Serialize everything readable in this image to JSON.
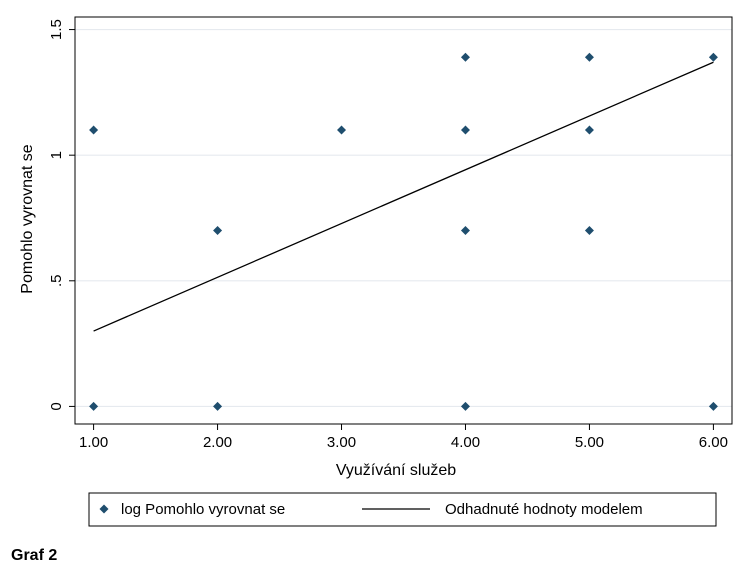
{
  "chart_data": {
    "type": "scatter",
    "xlabel": "Využívání služeb",
    "ylabel": "Pomohlo vyrovnat se",
    "xlim": [
      0.85,
      6.15
    ],
    "ylim": [
      -0.07,
      1.55
    ],
    "x_ticks": [
      1,
      2,
      3,
      4,
      5,
      6
    ],
    "x_tick_labels": [
      "1.00",
      "2.00",
      "3.00",
      "4.00",
      "5.00",
      "6.00"
    ],
    "y_ticks": [
      0,
      0.5,
      1,
      1.5
    ],
    "y_tick_labels": [
      "0",
      ".5",
      "1",
      "1.5"
    ],
    "grid": "horizontal",
    "legend_position": "bottom",
    "series": [
      {
        "name": "log Pomohlo vyrovnat se",
        "kind": "scatter",
        "marker": "diamond",
        "color": "#1f4e6e",
        "points": [
          {
            "x": 1,
            "y": 1.1
          },
          {
            "x": 1,
            "y": 0
          },
          {
            "x": 2,
            "y": 0.7
          },
          {
            "x": 2,
            "y": 0
          },
          {
            "x": 3,
            "y": 1.1
          },
          {
            "x": 4,
            "y": 1.39
          },
          {
            "x": 4,
            "y": 1.1
          },
          {
            "x": 4,
            "y": 0.7
          },
          {
            "x": 4,
            "y": 0
          },
          {
            "x": 5,
            "y": 1.39
          },
          {
            "x": 5,
            "y": 1.1
          },
          {
            "x": 5,
            "y": 0.7
          },
          {
            "x": 6,
            "y": 1.39
          },
          {
            "x": 6,
            "y": 0
          }
        ]
      },
      {
        "name": "Odhadnuté hodnoty modelem",
        "kind": "line",
        "color": "#000000",
        "points": [
          {
            "x": 1,
            "y": 0.3
          },
          {
            "x": 6,
            "y": 1.37
          }
        ]
      }
    ]
  },
  "caption": "Graf 2"
}
